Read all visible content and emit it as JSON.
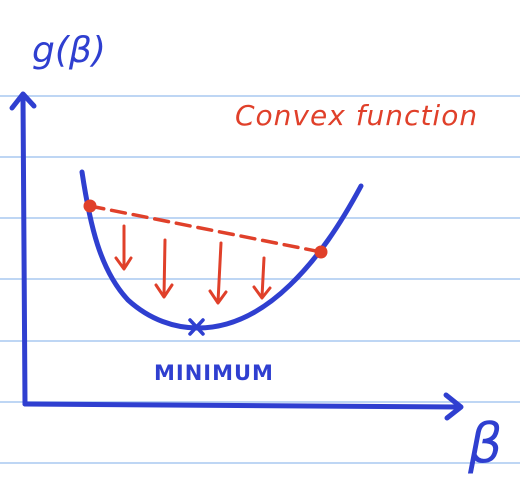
{
  "labels": {
    "y_axis": "g(β)",
    "x_axis": "β",
    "title": "Convex function",
    "minimum": "MINIMUM"
  },
  "colors": {
    "background": "#ffffff",
    "ruled_line": "#a9c8f0",
    "ink_blue": "#2f3fd0",
    "ink_red": "#e0402a"
  }
}
